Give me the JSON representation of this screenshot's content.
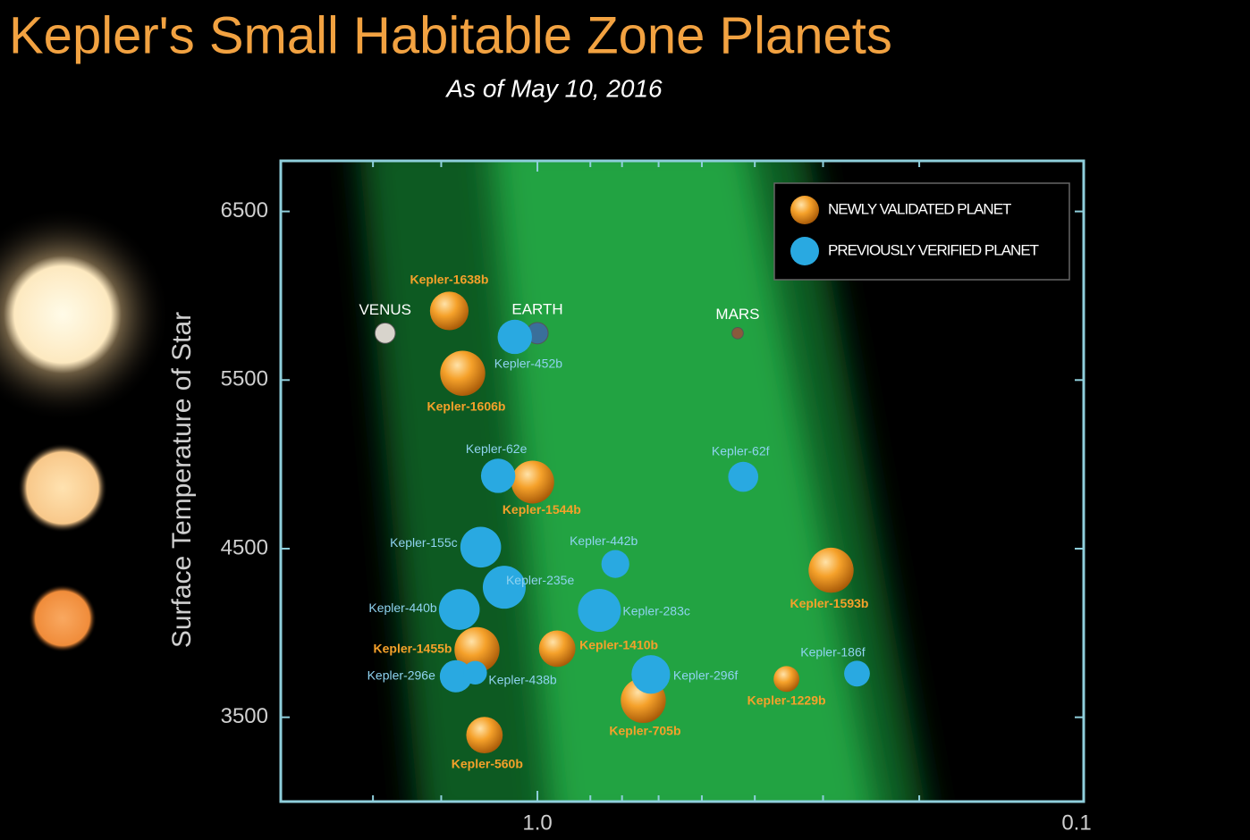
{
  "chart_data": {
    "type": "bubble",
    "title": "Kepler's Small Habitable Zone Planets",
    "subtitle": "As of May 10, 2016",
    "y_label": "Surface Temperature of Star",
    "xlim": [
      2.95,
      0.1
    ],
    "ylim": [
      3000,
      6800
    ],
    "xscale": "log",
    "xticks": [
      {
        "value": 1,
        "label": "1.0"
      },
      0.1
    ],
    "xminorticks": [
      2,
      1.5,
      0.8,
      0.7,
      0.6,
      0.5,
      0.4,
      0.3,
      0.2
    ],
    "yticks": [
      3500,
      4500,
      5500,
      6500
    ],
    "legend": "upper right",
    "series": [
      {
        "name": "NEWLY VALIDATED PLANET",
        "color": "#f39a1e",
        "labels": [
          "Kepler-1638b",
          "Kepler-1606b",
          "Kepler-1544b",
          "Kepler-1593b",
          "Kepler-1455b",
          "Kepler-1410b",
          "Kepler-1229b",
          "Kepler-705b",
          "Kepler-560b"
        ],
        "x": [
          1.45,
          1.37,
          1.02,
          0.29,
          1.29,
          0.92,
          0.35,
          0.64,
          1.25
        ],
        "values": [
          5910,
          5540,
          4895,
          4372,
          3901,
          3907,
          3727,
          3600,
          3394
        ],
        "sizes": [
          1.8,
          2.1,
          2.0,
          2.1,
          2.1,
          1.7,
          1.2,
          2.1,
          1.7
        ]
      },
      {
        "name": "PREVIOUSLY VERIFIED PLANET",
        "color": "#29a9e1",
        "labels": [
          "Kepler-452b",
          "Kepler-62e",
          "Kepler-62f",
          "Kepler-155c",
          "Kepler-442b",
          "Kepler-235e",
          "Kepler-440b",
          "Kepler-283c",
          "Kepler-296e",
          "Kepler-438b",
          "Kepler-296f",
          "Kepler-186f"
        ],
        "x": [
          1.1,
          1.18,
          0.42,
          1.27,
          0.72,
          1.15,
          1.39,
          0.77,
          1.41,
          1.3,
          0.62,
          0.26
        ],
        "values": [
          5756,
          4932,
          4926,
          4509,
          4409,
          4271,
          4139,
          4134,
          3743,
          3764,
          3754,
          3759
        ],
        "sizes": [
          1.6,
          1.6,
          1.4,
          1.9,
          1.3,
          2.0,
          1.9,
          2.0,
          1.5,
          1.1,
          1.8,
          1.2
        ]
      }
    ],
    "reference_points": {
      "names": [
        "VENUS",
        "EARTH",
        "MARS"
      ],
      "x": [
        1.9,
        1.0,
        0.43
      ],
      "values": [
        5778,
        5778,
        5778
      ],
      "sizes": [
        0.95,
        1.0,
        0.53
      ],
      "colors": [
        "#d8d4cc",
        "#3a6f9a",
        "#8a5a3c"
      ]
    }
  }
}
